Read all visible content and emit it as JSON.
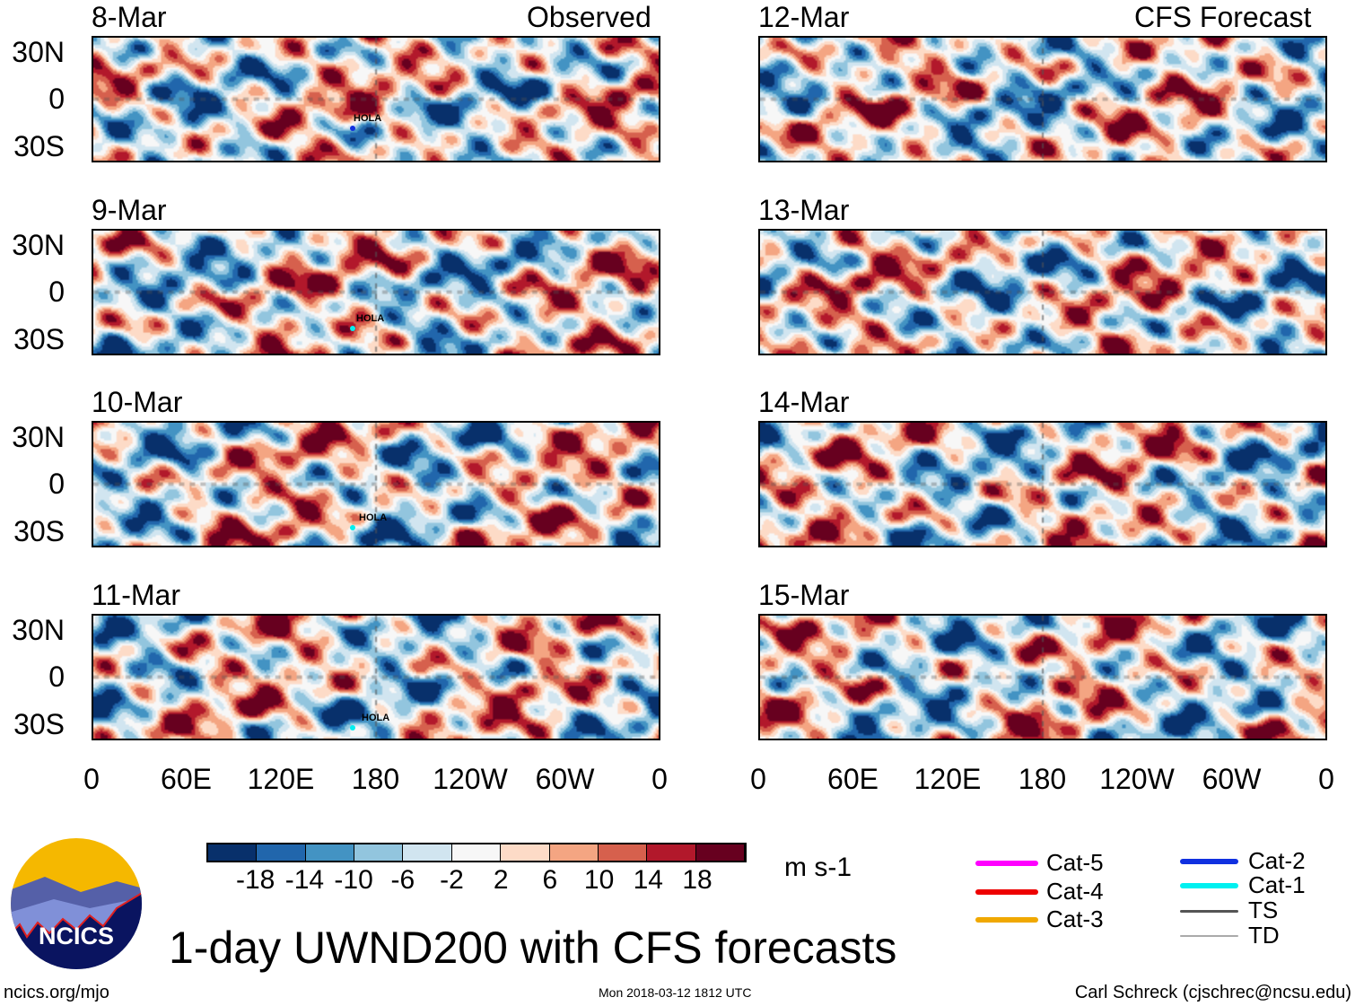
{
  "title": "1-day UWND200 with CFS forecasts",
  "observed_label": "Observed",
  "forecast_label": "CFS Forecast",
  "panels_left": [
    {
      "date": "8-Mar",
      "storm": "HOLA"
    },
    {
      "date": "9-Mar",
      "storm": "HOLA"
    },
    {
      "date": "10-Mar",
      "storm": "HOLA"
    },
    {
      "date": "11-Mar",
      "storm": "HOLA"
    }
  ],
  "panels_right": [
    {
      "date": "12-Mar"
    },
    {
      "date": "13-Mar"
    },
    {
      "date": "14-Mar"
    },
    {
      "date": "15-Mar"
    }
  ],
  "lat_labels": [
    "30N",
    "0",
    "30S"
  ],
  "lon_labels": [
    "0",
    "60E",
    "120E",
    "180",
    "120W",
    "60W",
    "0"
  ],
  "colorbar": {
    "colors": [
      "#08306b",
      "#2166ac",
      "#4393c3",
      "#92c5de",
      "#d1e5f0",
      "#f7f7f7",
      "#fddbc7",
      "#f4a582",
      "#d6604d",
      "#b2182b",
      "#67001f"
    ],
    "labels": [
      "-18",
      "-14",
      "-10",
      "-6",
      "-2",
      "2",
      "6",
      "10",
      "14",
      "18"
    ],
    "units": "m s-1"
  },
  "legend": [
    {
      "label": "Cat-5",
      "color": "#ff00ff"
    },
    {
      "label": "Cat-4",
      "color": "#ee0000"
    },
    {
      "label": "Cat-3",
      "color": "#f0a800"
    },
    {
      "label": "Cat-2",
      "color": "#1030e0"
    },
    {
      "label": "Cat-1",
      "color": "#00f0f0"
    },
    {
      "label": "TS",
      "color": "#555555"
    },
    {
      "label": "TD",
      "color": "#aaaaaa"
    }
  ],
  "logo_text": "NCICS",
  "footer": {
    "website": "ncics.org/mjo",
    "timestamp": "Mon 2018-03-12 1812 UTC",
    "author": "Carl Schreck (cjschrec@ncsu.edu)"
  }
}
